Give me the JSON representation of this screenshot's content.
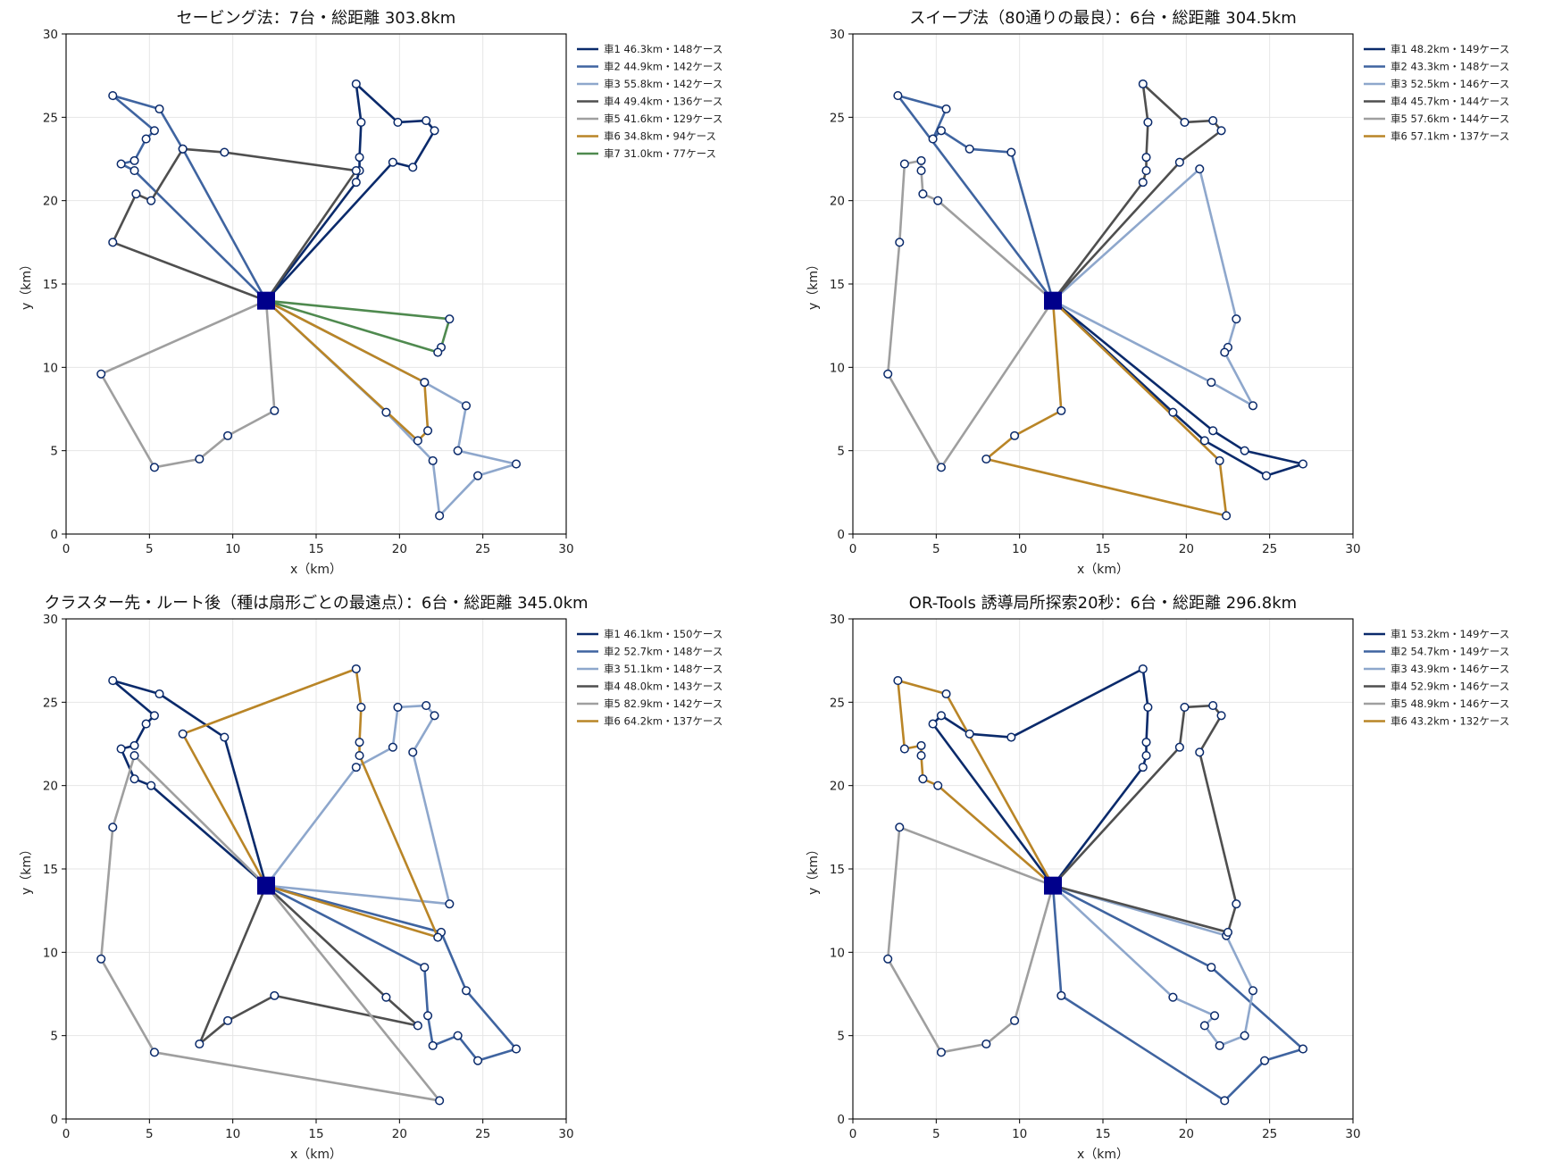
{
  "chart_data": [
    {
      "type": "line",
      "title": "セービング法：7台・総距離 303.8km",
      "xlabel": "x（km）",
      "ylabel": "y（km）",
      "xlim": [
        0,
        30
      ],
      "ylim": [
        0,
        30
      ],
      "xticks": [
        "0",
        "5",
        "10",
        "15",
        "20",
        "25",
        "30"
      ],
      "yticks": [
        "0",
        "5",
        "10",
        "15",
        "20",
        "25",
        "30"
      ],
      "grid": true,
      "legend_position": "outside-upper-right",
      "depot": [
        12.0,
        14.0
      ],
      "series": [
        {
          "name": "車1  46.3km・148ケース",
          "color": "#0a2a6b",
          "route": [
            [
              12,
              14
            ],
            [
              17.4,
              21.1
            ],
            [
              17.6,
              21.8
            ],
            [
              17.6,
              22.6
            ],
            [
              17.7,
              24.7
            ],
            [
              17.4,
              27.0
            ],
            [
              19.9,
              24.7
            ],
            [
              21.6,
              24.8
            ],
            [
              22.1,
              24.2
            ],
            [
              20.8,
              22.0
            ],
            [
              19.6,
              22.3
            ],
            [
              12,
              14
            ]
          ]
        },
        {
          "name": "車2  44.9km・142ケース",
          "color": "#3f64a0",
          "route": [
            [
              12,
              14
            ],
            [
              7.0,
              23.1
            ],
            [
              5.6,
              25.5
            ],
            [
              2.8,
              26.3
            ],
            [
              5.3,
              24.2
            ],
            [
              4.8,
              23.7
            ],
            [
              4.1,
              22.4
            ],
            [
              3.3,
              22.2
            ],
            [
              4.1,
              21.8
            ],
            [
              12,
              14
            ]
          ]
        },
        {
          "name": "車3  55.8km・142ケース",
          "color": "#8ea7cc",
          "route": [
            [
              12,
              14
            ],
            [
              21.5,
              9.1
            ],
            [
              24.0,
              7.7
            ],
            [
              23.5,
              5.0
            ],
            [
              27.0,
              4.2
            ],
            [
              24.7,
              3.5
            ],
            [
              22.4,
              1.1
            ],
            [
              22.0,
              4.4
            ],
            [
              19.2,
              7.3
            ],
            [
              12,
              14
            ]
          ]
        },
        {
          "name": "車4  49.4km・136ケース",
          "color": "#4f4f4f",
          "route": [
            [
              12,
              14
            ],
            [
              17.4,
              21.8
            ],
            [
              9.5,
              22.9
            ],
            [
              7.0,
              23.1
            ],
            [
              5.1,
              20.0
            ],
            [
              4.2,
              20.4
            ],
            [
              2.8,
              17.5
            ],
            [
              12,
              14
            ]
          ]
        },
        {
          "name": "車5  41.6km・129ケース",
          "color": "#9f9f9f",
          "route": [
            [
              12,
              14
            ],
            [
              2.1,
              9.6
            ],
            [
              5.3,
              4.0
            ],
            [
              8.0,
              4.5
            ],
            [
              9.7,
              5.9
            ],
            [
              12.5,
              7.4
            ],
            [
              12,
              14
            ]
          ]
        },
        {
          "name": "車6  34.8km・94ケース",
          "color": "#b98527",
          "route": [
            [
              12,
              14
            ],
            [
              21.5,
              9.1
            ],
            [
              21.7,
              6.2
            ],
            [
              21.1,
              5.6
            ],
            [
              12,
              14
            ]
          ]
        },
        {
          "name": "車7  31.0km・77ケース",
          "color": "#4f8a4f",
          "route": [
            [
              12,
              14
            ],
            [
              23.0,
              12.9
            ],
            [
              22.5,
              11.2
            ],
            [
              22.3,
              10.9
            ],
            [
              12,
              14
            ]
          ]
        }
      ]
    },
    {
      "type": "line",
      "title": "スイープ法（80通りの最良）：6台・総距離 304.5km",
      "xlabel": "x（km）",
      "ylabel": "y（km）",
      "xlim": [
        0,
        30
      ],
      "ylim": [
        0,
        30
      ],
      "xticks": [
        "0",
        "5",
        "10",
        "15",
        "20",
        "25",
        "30"
      ],
      "yticks": [
        "0",
        "5",
        "10",
        "15",
        "20",
        "25",
        "30"
      ],
      "grid": true,
      "legend_position": "outside-upper-right",
      "depot": [
        12.0,
        14.0
      ],
      "series": [
        {
          "name": "車1  48.2km・149ケース",
          "color": "#0a2a6b",
          "route": [
            [
              12,
              14
            ],
            [
              21.6,
              6.2
            ],
            [
              23.5,
              5.0
            ],
            [
              27.0,
              4.2
            ],
            [
              24.8,
              3.5
            ],
            [
              21.1,
              5.6
            ],
            [
              19.2,
              7.3
            ],
            [
              12,
              14
            ]
          ]
        },
        {
          "name": "車2  43.3km・148ケース",
          "color": "#3f64a0",
          "route": [
            [
              12,
              14
            ],
            [
              9.5,
              22.9
            ],
            [
              7.0,
              23.1
            ],
            [
              5.3,
              24.2
            ],
            [
              4.8,
              23.7
            ],
            [
              5.6,
              25.5
            ],
            [
              2.7,
              26.3
            ],
            [
              12,
              14
            ]
          ]
        },
        {
          "name": "車3  52.5km・146ケース",
          "color": "#8ea7cc",
          "route": [
            [
              12,
              14
            ],
            [
              20.8,
              21.9
            ],
            [
              23.0,
              12.9
            ],
            [
              22.5,
              11.2
            ],
            [
              22.3,
              10.9
            ],
            [
              24.0,
              7.7
            ],
            [
              21.5,
              9.1
            ],
            [
              12,
              14
            ]
          ]
        },
        {
          "name": "車4  45.7km・144ケース",
          "color": "#4f4f4f",
          "route": [
            [
              12,
              14
            ],
            [
              17.4,
              21.1
            ],
            [
              17.6,
              21.8
            ],
            [
              17.6,
              22.6
            ],
            [
              17.7,
              24.7
            ],
            [
              17.4,
              27.0
            ],
            [
              19.9,
              24.7
            ],
            [
              21.6,
              24.8
            ],
            [
              22.1,
              24.2
            ],
            [
              19.6,
              22.3
            ],
            [
              12,
              14
            ]
          ]
        },
        {
          "name": "車5  57.6km・144ケース",
          "color": "#9f9f9f",
          "route": [
            [
              12,
              14
            ],
            [
              5.1,
              20.0
            ],
            [
              4.2,
              20.4
            ],
            [
              4.1,
              21.8
            ],
            [
              4.1,
              22.4
            ],
            [
              3.1,
              22.2
            ],
            [
              2.8,
              17.5
            ],
            [
              2.1,
              9.6
            ],
            [
              5.3,
              4.0
            ],
            [
              12,
              14
            ]
          ]
        },
        {
          "name": "車6  57.1km・137ケース",
          "color": "#b98527",
          "route": [
            [
              12,
              14
            ],
            [
              12.5,
              7.4
            ],
            [
              9.7,
              5.9
            ],
            [
              8.0,
              4.5
            ],
            [
              22.4,
              1.1
            ],
            [
              22.0,
              4.4
            ],
            [
              12,
              14
            ]
          ]
        }
      ]
    },
    {
      "type": "line",
      "title": "クラスター先・ルート後（種は扇形ごとの最遠点）：6台・総距離 345.0km",
      "xlabel": "x（km）",
      "ylabel": "y（km）",
      "xlim": [
        0,
        30
      ],
      "ylim": [
        0,
        30
      ],
      "xticks": [
        "0",
        "5",
        "10",
        "15",
        "20",
        "25",
        "30"
      ],
      "yticks": [
        "0",
        "5",
        "10",
        "15",
        "20",
        "25",
        "30"
      ],
      "grid": true,
      "legend_position": "outside-upper-right",
      "depot": [
        12.0,
        14.0
      ],
      "series": [
        {
          "name": "車1  46.1km・150ケース",
          "color": "#0a2a6b",
          "route": [
            [
              12,
              14
            ],
            [
              9.5,
              22.9
            ],
            [
              5.6,
              25.5
            ],
            [
              2.8,
              26.3
            ],
            [
              5.3,
              24.2
            ],
            [
              4.8,
              23.7
            ],
            [
              4.1,
              22.4
            ],
            [
              3.3,
              22.2
            ],
            [
              4.1,
              20.4
            ],
            [
              5.1,
              20.0
            ],
            [
              12,
              14
            ]
          ]
        },
        {
          "name": "車2  52.7km・148ケース",
          "color": "#3f64a0",
          "route": [
            [
              12,
              14
            ],
            [
              22.5,
              11.2
            ],
            [
              24.0,
              7.7
            ],
            [
              27.0,
              4.2
            ],
            [
              24.7,
              3.5
            ],
            [
              23.5,
              5.0
            ],
            [
              22.0,
              4.4
            ],
            [
              21.7,
              6.2
            ],
            [
              21.5,
              9.1
            ],
            [
              12,
              14
            ]
          ]
        },
        {
          "name": "車3  51.1km・148ケース",
          "color": "#8ea7cc",
          "route": [
            [
              12,
              14
            ],
            [
              23.0,
              12.9
            ],
            [
              20.8,
              22.0
            ],
            [
              22.1,
              24.2
            ],
            [
              21.6,
              24.8
            ],
            [
              19.9,
              24.7
            ],
            [
              19.6,
              22.3
            ],
            [
              17.4,
              21.1
            ],
            [
              12,
              14
            ]
          ]
        },
        {
          "name": "車4  48.0km・143ケース",
          "color": "#4f4f4f",
          "route": [
            [
              12,
              14
            ],
            [
              8.0,
              4.5
            ],
            [
              9.7,
              5.9
            ],
            [
              12.5,
              7.4
            ],
            [
              21.1,
              5.6
            ],
            [
              19.2,
              7.3
            ],
            [
              12,
              14
            ]
          ]
        },
        {
          "name": "車5  82.9km・142ケース",
          "color": "#9f9f9f",
          "route": [
            [
              12,
              14
            ],
            [
              4.1,
              21.8
            ],
            [
              2.8,
              17.5
            ],
            [
              2.1,
              9.6
            ],
            [
              5.3,
              4.0
            ],
            [
              22.4,
              1.1
            ],
            [
              12,
              14
            ]
          ]
        },
        {
          "name": "車6  64.2km・137ケース",
          "color": "#b98527",
          "route": [
            [
              12,
              14
            ],
            [
              7.0,
              23.1
            ],
            [
              17.4,
              27.0
            ],
            [
              17.7,
              24.7
            ],
            [
              17.6,
              22.6
            ],
            [
              17.6,
              21.8
            ],
            [
              22.3,
              10.9
            ],
            [
              12,
              14
            ]
          ]
        }
      ]
    },
    {
      "type": "line",
      "title": "OR-Tools 誘導局所探索20秒：6台・総距離 296.8km",
      "xlabel": "x（km）",
      "ylabel": "y（km）",
      "xlim": [
        0,
        30
      ],
      "ylim": [
        0,
        30
      ],
      "xticks": [
        "0",
        "5",
        "10",
        "15",
        "20",
        "25",
        "30"
      ],
      "yticks": [
        "0",
        "5",
        "10",
        "15",
        "20",
        "25",
        "30"
      ],
      "grid": true,
      "legend_position": "outside-upper-right",
      "depot": [
        12.0,
        14.0
      ],
      "series": [
        {
          "name": "車1  53.2km・149ケース",
          "color": "#0a2a6b",
          "route": [
            [
              12,
              14
            ],
            [
              4.8,
              23.7
            ],
            [
              5.3,
              24.2
            ],
            [
              7.0,
              23.1
            ],
            [
              9.5,
              22.9
            ],
            [
              17.4,
              27.0
            ],
            [
              17.7,
              24.7
            ],
            [
              17.6,
              22.6
            ],
            [
              17.6,
              21.8
            ],
            [
              17.4,
              21.1
            ],
            [
              12,
              14
            ]
          ]
        },
        {
          "name": "車2  54.7km・149ケース",
          "color": "#3f64a0",
          "route": [
            [
              12,
              14
            ],
            [
              21.5,
              9.1
            ],
            [
              27.0,
              4.2
            ],
            [
              24.7,
              3.5
            ],
            [
              22.3,
              1.1
            ],
            [
              12.5,
              7.4
            ],
            [
              12,
              14
            ]
          ]
        },
        {
          "name": "車3  43.9km・146ケース",
          "color": "#8ea7cc",
          "route": [
            [
              12,
              14
            ],
            [
              22.4,
              11.0
            ],
            [
              24.0,
              7.7
            ],
            [
              23.5,
              5.0
            ],
            [
              22.0,
              4.4
            ],
            [
              21.1,
              5.6
            ],
            [
              21.7,
              6.2
            ],
            [
              19.2,
              7.3
            ],
            [
              12,
              14
            ]
          ]
        },
        {
          "name": "車4  52.9km・146ケース",
          "color": "#4f4f4f",
          "route": [
            [
              12,
              14
            ],
            [
              22.5,
              11.2
            ],
            [
              23.0,
              12.9
            ],
            [
              20.8,
              22.0
            ],
            [
              22.1,
              24.2
            ],
            [
              21.6,
              24.8
            ],
            [
              19.9,
              24.7
            ],
            [
              19.6,
              22.3
            ],
            [
              12,
              14
            ]
          ]
        },
        {
          "name": "車5  48.9km・146ケース",
          "color": "#9f9f9f",
          "route": [
            [
              12,
              14
            ],
            [
              2.8,
              17.5
            ],
            [
              2.1,
              9.6
            ],
            [
              5.3,
              4.0
            ],
            [
              8.0,
              4.5
            ],
            [
              9.7,
              5.9
            ],
            [
              12,
              14
            ]
          ]
        },
        {
          "name": "車6  43.2km・132ケース",
          "color": "#b98527",
          "route": [
            [
              12,
              14
            ],
            [
              5.6,
              25.5
            ],
            [
              2.7,
              26.3
            ],
            [
              3.1,
              22.2
            ],
            [
              4.1,
              22.4
            ],
            [
              4.1,
              21.8
            ],
            [
              4.2,
              20.4
            ],
            [
              5.1,
              20.0
            ],
            [
              12,
              14
            ]
          ]
        }
      ]
    }
  ]
}
